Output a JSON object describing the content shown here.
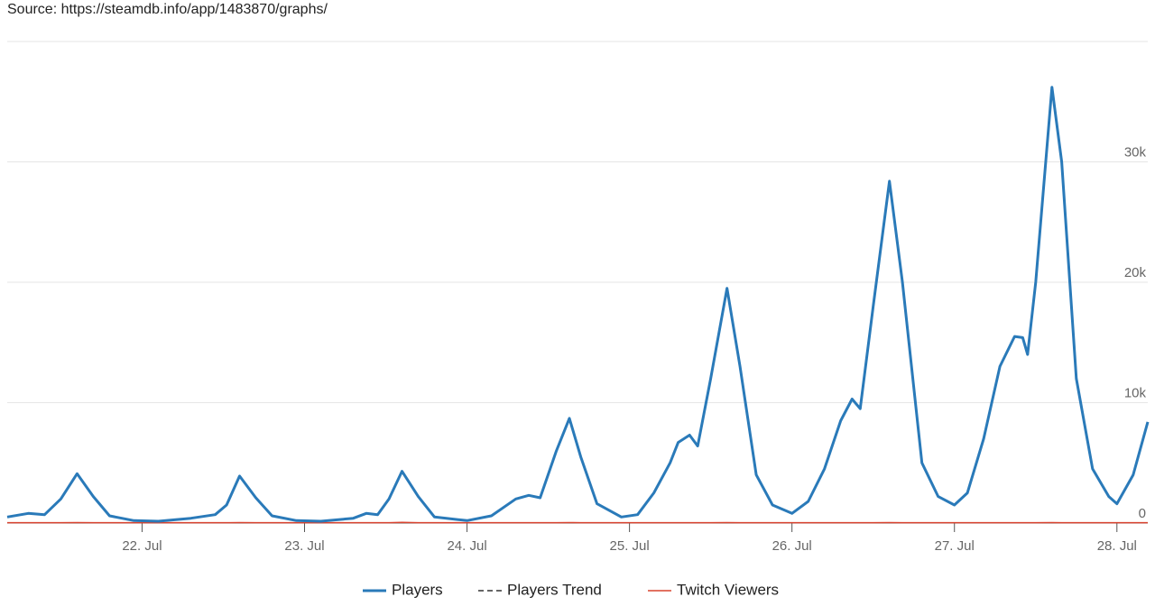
{
  "chart_data": {
    "type": "line",
    "title": "Source: https://steamdb.info/app/1483870/graphs/",
    "x": [
      21.17,
      21.3,
      21.4,
      21.5,
      21.6,
      21.7,
      21.8,
      21.95,
      22.1,
      22.3,
      22.45,
      22.52,
      22.6,
      22.7,
      22.8,
      22.95,
      23.1,
      23.3,
      23.38,
      23.45,
      23.52,
      23.6,
      23.7,
      23.8,
      24.0,
      24.15,
      24.3,
      24.38,
      24.45,
      24.55,
      24.63,
      24.7,
      24.8,
      24.95,
      25.05,
      25.15,
      25.25,
      25.3,
      25.37,
      25.42,
      25.5,
      25.6,
      25.68,
      25.78,
      25.88,
      26.0,
      26.1,
      26.2,
      26.3,
      26.37,
      26.42,
      26.5,
      26.6,
      26.68,
      26.8,
      26.9,
      27.0,
      27.08,
      27.18,
      27.28,
      27.37,
      27.42,
      27.45,
      27.5,
      27.6,
      27.66,
      27.75,
      27.85,
      27.95,
      28.0,
      28.1,
      28.19
    ],
    "series": [
      {
        "name": "Players",
        "color": "#2a7ab9",
        "values": [
          500,
          800,
          700,
          2000,
          4100,
          2200,
          600,
          200,
          150,
          400,
          700,
          1500,
          3900,
          2100,
          600,
          200,
          150,
          400,
          800,
          700,
          2000,
          4300,
          2200,
          500,
          200,
          600,
          2000,
          2300,
          2100,
          6000,
          8700,
          5500,
          1600,
          500,
          700,
          2500,
          5000,
          6700,
          7300,
          6400,
          12000,
          19500,
          13000,
          4000,
          1500,
          800,
          1800,
          4500,
          8500,
          10300,
          9500,
          18000,
          28400,
          20000,
          5000,
          2200,
          1500,
          2500,
          7000,
          13000,
          15500,
          15400,
          14000,
          20000,
          36200,
          30000,
          12000,
          4500,
          2200,
          1600,
          4000,
          8400
        ]
      },
      {
        "name": "Players Trend",
        "color": "#333333",
        "dash": true,
        "values": [
          null,
          null,
          null,
          null,
          null,
          null,
          null,
          null,
          null,
          null,
          null,
          null,
          null,
          null,
          null,
          null,
          null,
          null,
          null,
          null,
          null,
          null,
          null,
          null,
          null,
          null,
          null,
          null,
          null,
          null,
          null,
          null,
          null,
          null,
          null,
          null,
          null,
          null,
          null,
          null,
          null,
          null,
          null,
          null,
          null,
          null,
          null,
          null,
          null,
          null,
          null,
          null,
          null,
          null,
          null,
          null,
          null,
          null,
          null,
          null,
          null,
          null,
          null,
          null,
          null,
          null,
          null,
          null,
          null,
          null,
          null,
          null
        ]
      },
      {
        "name": "Twitch Viewers",
        "color": "#d9432f",
        "values": [
          30,
          30,
          30,
          30,
          40,
          30,
          30,
          30,
          30,
          30,
          30,
          30,
          40,
          30,
          30,
          30,
          30,
          30,
          30,
          30,
          30,
          50,
          30,
          30,
          30,
          30,
          30,
          30,
          30,
          30,
          40,
          30,
          30,
          30,
          30,
          30,
          30,
          30,
          30,
          30,
          30,
          40,
          30,
          30,
          30,
          30,
          30,
          30,
          30,
          30,
          30,
          30,
          40,
          30,
          30,
          30,
          30,
          30,
          30,
          30,
          30,
          30,
          30,
          30,
          40,
          30,
          30,
          30,
          30,
          30,
          30,
          30
        ]
      }
    ],
    "xlim": [
      21.17,
      28.19
    ],
    "xticks": [
      {
        "value": 22,
        "label": "22. Jul"
      },
      {
        "value": 23,
        "label": "23. Jul"
      },
      {
        "value": 24,
        "label": "24. Jul"
      },
      {
        "value": 25,
        "label": "25. Jul"
      },
      {
        "value": 26,
        "label": "26. Jul"
      },
      {
        "value": 27,
        "label": "27. Jul"
      },
      {
        "value": 28,
        "label": "28. Jul"
      }
    ],
    "ylim": [
      0,
      40000
    ],
    "yticks": [
      0,
      {
        "value": 10000,
        "label": "10k"
      },
      {
        "value": 20000,
        "label": "20k"
      },
      {
        "value": 30000,
        "label": "30k"
      }
    ],
    "grid": true
  }
}
